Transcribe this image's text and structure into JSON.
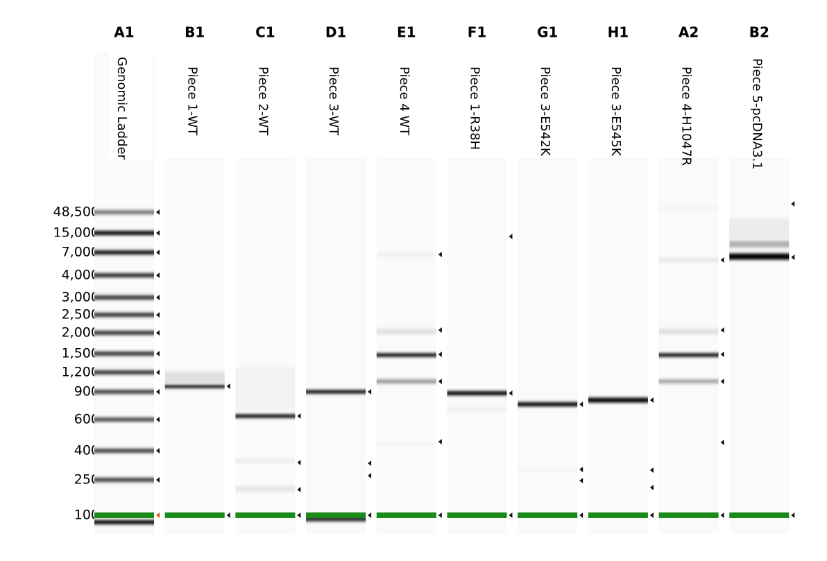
{
  "size_labels": [
    "48,500",
    "15,000",
    "7,000",
    "4,000",
    "3,000",
    "2,500",
    "2,000",
    "1,500",
    "1,200",
    "900",
    "600",
    "400",
    "250",
    "100"
  ],
  "lanes": [
    {
      "well": "A1",
      "label": "Genomic Ladder"
    },
    {
      "well": "B1",
      "label": "Piece 1-WT"
    },
    {
      "well": "C1",
      "label": "Piece 2-WT"
    },
    {
      "well": "D1",
      "label": "Piece 3-WT"
    },
    {
      "well": "E1",
      "label": "Piece 4 WT"
    },
    {
      "well": "F1",
      "label": "Piece 1-R38H"
    },
    {
      "well": "G1",
      "label": "Piece 3-E542K"
    },
    {
      "well": "H1",
      "label": "Piece 3-E545K"
    },
    {
      "well": "A2",
      "label": "Piece 4-H1047R"
    },
    {
      "well": "B2",
      "label": "Piece 5-pcDNA3.1"
    }
  ]
}
